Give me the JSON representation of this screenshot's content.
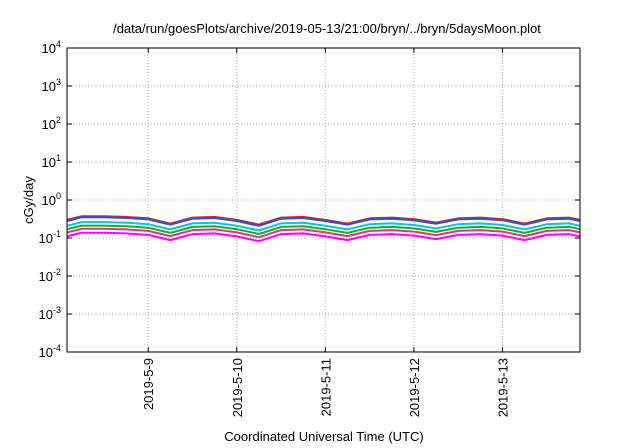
{
  "chart_data": {
    "type": "line",
    "title": "/data/run/goesPlots/archive/2019-05-13/21:00/bryn/../bryn/5daysMoon.plot",
    "xlabel": "Coordinated Universal Time (UTC)",
    "ylabel": "cGy/day",
    "yscale": "log",
    "ylim": [
      0.0001,
      10000
    ],
    "xlim": [
      "2019-05-08 02:00",
      "2019-05-13 21:00"
    ],
    "grid": true,
    "legend": "none",
    "y_ticks": [
      {
        "base": "10",
        "exp": "4"
      },
      {
        "base": "10",
        "exp": "3"
      },
      {
        "base": "10",
        "exp": "2"
      },
      {
        "base": "10",
        "exp": "1"
      },
      {
        "base": "10",
        "exp": "0"
      },
      {
        "base": "10",
        "exp": "-1"
      },
      {
        "base": "10",
        "exp": "-2"
      },
      {
        "base": "10",
        "exp": "-3"
      },
      {
        "base": "10",
        "exp": "-4"
      }
    ],
    "x_ticks": [
      "2019-5-9",
      "2019-5-10",
      "2019-5-11",
      "2019-5-12",
      "2019-5-13"
    ],
    "series_shape": {
      "x": [
        "2019-05-08 02:00",
        "2019-05-08 06:00",
        "2019-05-08 12:00",
        "2019-05-08 18:00",
        "2019-05-09 00:00",
        "2019-05-09 06:00",
        "2019-05-09 12:00",
        "2019-05-09 18:00",
        "2019-05-10 00:00",
        "2019-05-10 06:00",
        "2019-05-10 12:00",
        "2019-05-10 18:00",
        "2019-05-11 00:00",
        "2019-05-11 06:00",
        "2019-05-11 12:00",
        "2019-05-11 18:00",
        "2019-05-12 00:00",
        "2019-05-12 06:00",
        "2019-05-12 12:00",
        "2019-05-12 18:00",
        "2019-05-13 00:00",
        "2019-05-13 06:00",
        "2019-05-13 12:00",
        "2019-05-13 18:00",
        "2019-05-13 21:00"
      ],
      "factor": [
        1.0,
        1.25,
        1.25,
        1.2,
        1.1,
        0.8,
        1.15,
        1.2,
        1.0,
        0.75,
        1.15,
        1.2,
        1.0,
        0.8,
        1.1,
        1.15,
        1.05,
        0.85,
        1.1,
        1.15,
        1.05,
        0.8,
        1.1,
        1.15,
        1.0
      ]
    },
    "series": [
      {
        "color": "#dd2222",
        "base": 0.3
      },
      {
        "color": "#2255dd",
        "base": 0.28
      },
      {
        "color": "#00cccc",
        "base": 0.21
      },
      {
        "color": "#22aa22",
        "base": 0.17
      },
      {
        "color": "#dd3388",
        "base": 0.14
      },
      {
        "color": "#ff00ff",
        "base": 0.11
      }
    ]
  }
}
